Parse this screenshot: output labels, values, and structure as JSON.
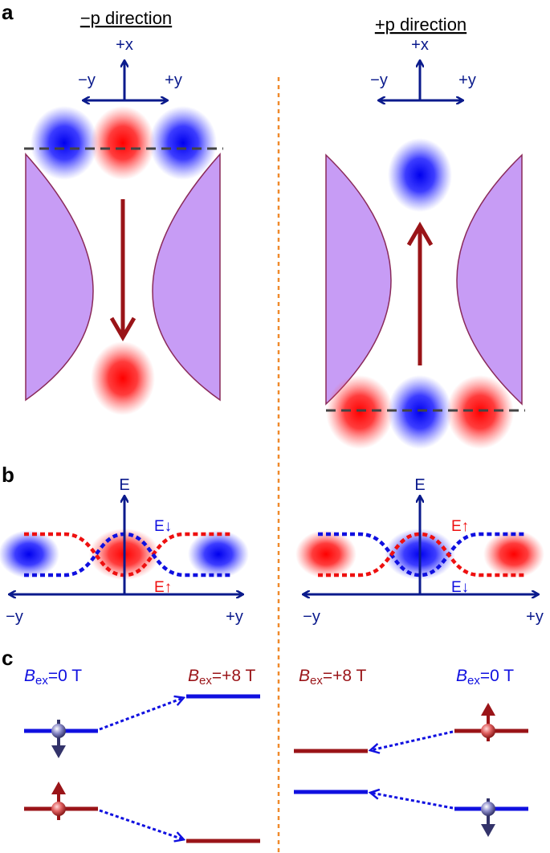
{
  "panels": {
    "a": "a",
    "b": "b",
    "c": "c"
  },
  "panel_a": {
    "left_title": "−p direction",
    "right_title": "+p direction",
    "axis_x": "+x",
    "axis_neg_y": "−y",
    "axis_pos_y": "+y"
  },
  "panel_b": {
    "axis_e": "E",
    "neg_y": "−y",
    "pos_y": "+y",
    "left_down_label": "E↓",
    "left_up_label": "E↑",
    "right_up_label": "E↑",
    "right_down_label": "E↓"
  },
  "panel_c": {
    "field_symbol": "B",
    "field_subscript": "ex",
    "left_initial_value": "=0 T",
    "left_final_value": "=+8 T",
    "right_initial_value": "=0 T",
    "right_final_value": "=+8 T"
  },
  "colors": {
    "blue": "#1010e0",
    "red": "#ee1010",
    "dark_red": "#9a1418",
    "navy": "#0a1a8c",
    "lavender": "#c79cf5",
    "orange": "#f08a2c",
    "gray": "#444444"
  }
}
